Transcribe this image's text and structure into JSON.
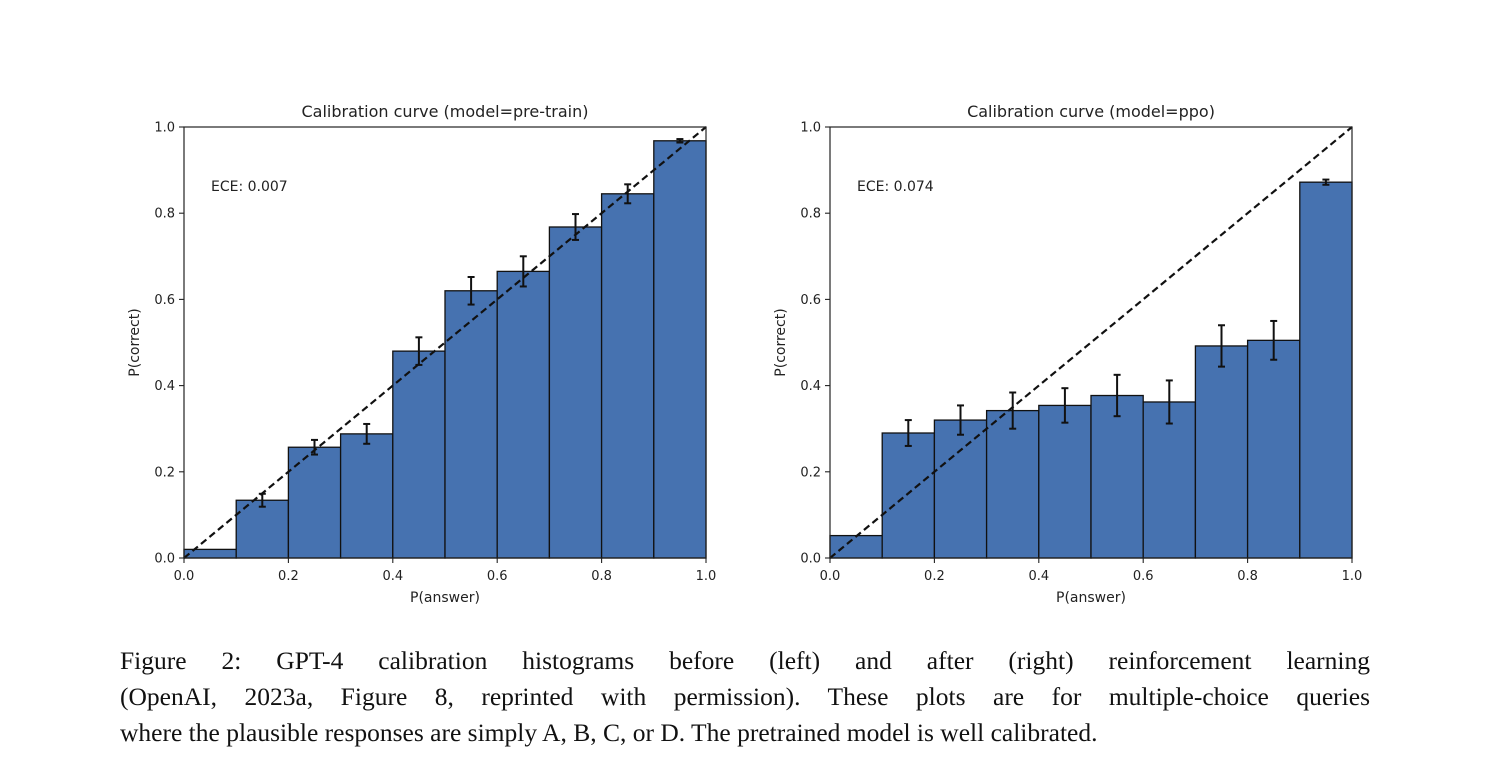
{
  "chart_data": [
    {
      "type": "bar",
      "title": "Calibration curve (model=pre-train)",
      "xlabel": "P(answer)",
      "ylabel": "P(correct)",
      "annotation": "ECE: 0.007",
      "xlim": [
        0.0,
        1.0
      ],
      "ylim": [
        0.0,
        1.0
      ],
      "xticks": [
        "0.0",
        "0.2",
        "0.4",
        "0.6",
        "0.8",
        "1.0"
      ],
      "yticks": [
        "0.0",
        "0.2",
        "0.4",
        "0.6",
        "0.8",
        "1.0"
      ],
      "bin_edges": [
        0.0,
        0.1,
        0.2,
        0.3,
        0.4,
        0.5,
        0.6,
        0.7,
        0.8,
        0.9,
        1.0
      ],
      "values": [
        0.02,
        0.134,
        0.257,
        0.288,
        0.48,
        0.62,
        0.665,
        0.768,
        0.845,
        0.968
      ],
      "errors": [
        0.0,
        0.015,
        0.017,
        0.023,
        0.032,
        0.032,
        0.035,
        0.03,
        0.022,
        0.004
      ],
      "bar_color": "#4672b0",
      "diagonal": true,
      "grid": false
    },
    {
      "type": "bar",
      "title": "Calibration curve (model=ppo)",
      "xlabel": "P(answer)",
      "ylabel": "P(correct)",
      "annotation": "ECE: 0.074",
      "xlim": [
        0.0,
        1.0
      ],
      "ylim": [
        0.0,
        1.0
      ],
      "xticks": [
        "0.0",
        "0.2",
        "0.4",
        "0.6",
        "0.8",
        "1.0"
      ],
      "yticks": [
        "0.0",
        "0.2",
        "0.4",
        "0.6",
        "0.8",
        "1.0"
      ],
      "bin_edges": [
        0.0,
        0.1,
        0.2,
        0.3,
        0.4,
        0.5,
        0.6,
        0.7,
        0.8,
        0.9,
        1.0
      ],
      "values": [
        0.052,
        0.29,
        0.32,
        0.342,
        0.354,
        0.377,
        0.362,
        0.492,
        0.505,
        0.872
      ],
      "errors": [
        0.0,
        0.03,
        0.034,
        0.042,
        0.04,
        0.048,
        0.05,
        0.048,
        0.045,
        0.006
      ],
      "bar_color": "#4672b0",
      "diagonal": true,
      "grid": false
    }
  ],
  "caption": {
    "line1": "Figure 2:  GPT-4 calibration histograms before (left) and after (right) reinforcement learning",
    "line2": "(OpenAI, 2023a, Figure 8, reprinted with permission). These plots are for multiple-choice queries",
    "line3": "where the plausible responses are simply A, B, C, or D. The pretrained model is well calibrated."
  }
}
